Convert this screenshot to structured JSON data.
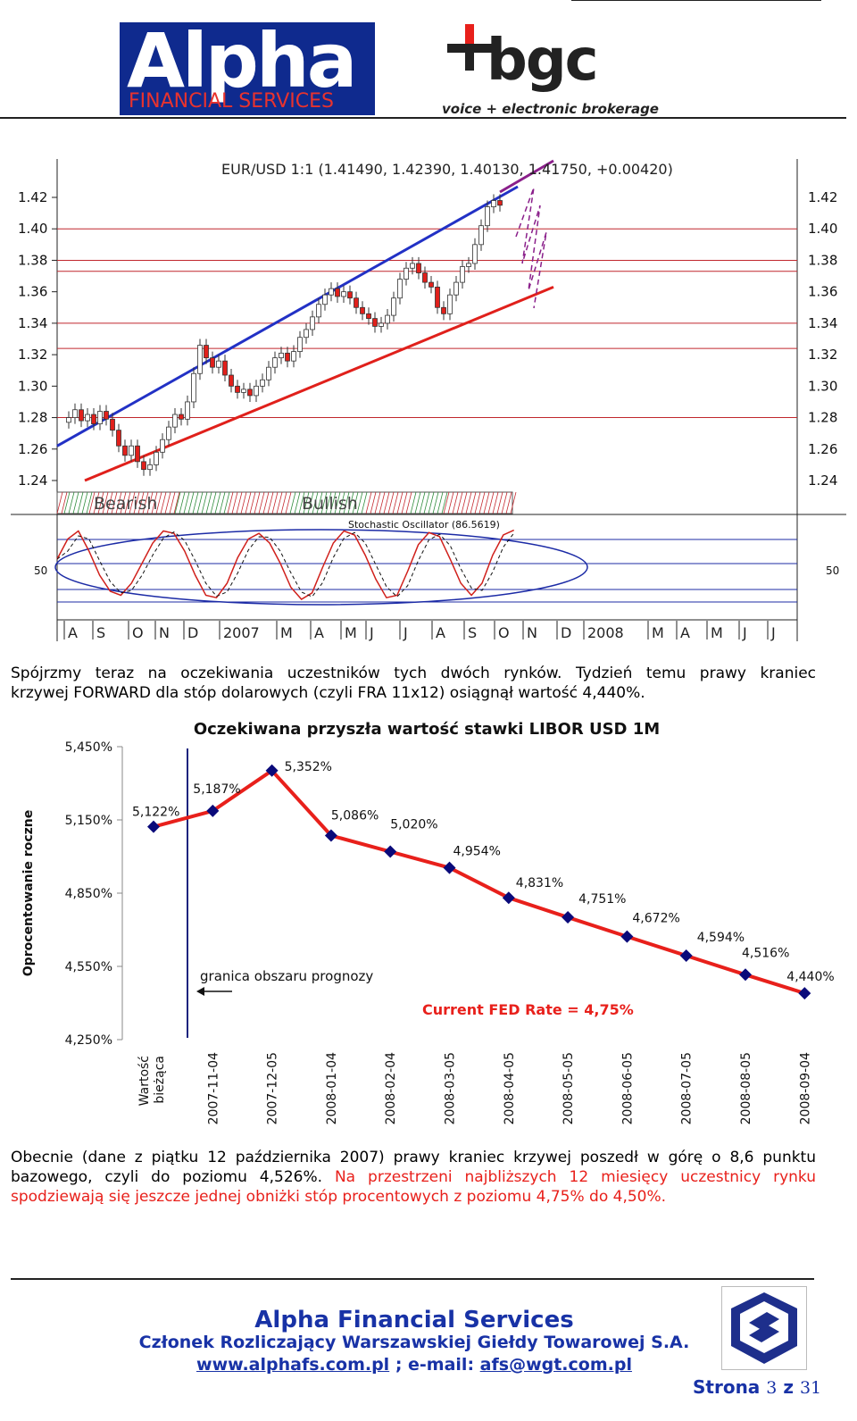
{
  "header": {
    "alpha_logo": {
      "word": "Alpha",
      "sub": "FINANCIAL SERVICES"
    },
    "bgc_logo": {
      "word": "bgc",
      "tagline": "voice + electronic brokerage"
    }
  },
  "fx_chart": {
    "title": "EUR/USD 1:1 (1.41490, 1.42390, 1.40130, 1.41750, +0.00420)",
    "y_ticks": [
      "1.42",
      "1.40",
      "1.38",
      "1.36",
      "1.34",
      "1.32",
      "1.30",
      "1.28",
      "1.26",
      "1.24"
    ],
    "bearish_label": "Bearish",
    "bullish_label": "Bullish",
    "oscillator_label": "Stochastic Oscillator (86.5619)",
    "osc_level_label": "50",
    "x_labels": [
      "A",
      "S",
      "O",
      "N",
      "D",
      "2007",
      "M",
      "A",
      "M",
      "J",
      "J",
      "A",
      "S",
      "O",
      "N",
      "D",
      "2008",
      "M",
      "A",
      "M",
      "J",
      "J"
    ]
  },
  "paragraph1": {
    "line1": "Spójrzmy teraz na oczekiwania uczestników tych dwóch rynków. Tydzień temu prawy kraniec",
    "line2": "krzywej FORWARD dla stóp dolarowych (czyli FRA 11x12) osiągnął wartość 4,440%."
  },
  "chart_data": {
    "type": "line",
    "title": "Oczekiwana przyszła wartość stawki LIBOR USD 1M",
    "ylabel": "Oprocentowanie roczne",
    "xlabel": "",
    "y_ticks": [
      "5,450%",
      "5,150%",
      "4,850%",
      "4,550%",
      "4,250%"
    ],
    "ylim": [
      4.25,
      5.45
    ],
    "categories": [
      "Wartość bieżąca",
      "2007-11-04",
      "2007-12-05",
      "2008-01-04",
      "2008-02-04",
      "2008-03-05",
      "2008-04-05",
      "2008-05-05",
      "2008-06-05",
      "2008-07-05",
      "2008-08-05",
      "2008-09-04"
    ],
    "values": [
      5.122,
      5.187,
      5.352,
      5.086,
      5.02,
      4.954,
      4.831,
      4.751,
      4.672,
      4.594,
      4.516,
      4.44
    ],
    "data_labels": [
      "5,122%",
      "5,187%",
      "5,352%",
      "5,086%",
      "5,020%",
      "4,954%",
      "4,831%",
      "4,751%",
      "4,672%",
      "4,594%",
      "4,516%",
      "4,440%"
    ],
    "annotations": {
      "forecast_boundary": "granica obszaru prognozy",
      "fed_rate": "Current FED Rate = 4,75%"
    },
    "line_color": "#e8201b",
    "marker_color": "#0a0a7a",
    "boundary_color": "#1a237e",
    "grid": false
  },
  "paragraph2": {
    "line1": "Obecnie (dane z piątku 12 października 2007) prawy kraniec krzywej poszedł  w górę o 8,6 punktu",
    "line2": "bazowego, czyli do poziomu 4,526%.",
    "line2_red": "Na przestrzeni najbliższych 12 miesięcy uczestnicy rynku",
    "line3_red": "spodziewają się jeszcze jednej obniżki stóp procentowych z poziomu 4,75% do 4,50%."
  },
  "footer": {
    "company": "Alpha Financial Services",
    "member": "Członek Rozliczający Warszawskiej Giełdy Towarowej S.A.",
    "website": "www.alphafs.com.pl",
    "separator": " ; e-mail: ",
    "email": "afs@wgt.com.pl",
    "page_label": "Strona",
    "page_number": "3",
    "page_of": "z",
    "page_total": "31"
  },
  "colors": {
    "brand_blue": "#1832a6",
    "accent_red": "#e8201b",
    "logo_navy": "#0f2a8e"
  }
}
